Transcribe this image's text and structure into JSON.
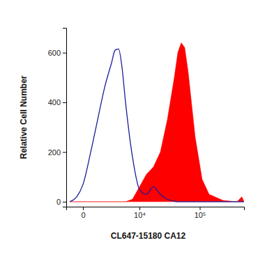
{
  "chart_data": {
    "type": "line",
    "x_label": "CL647-15180 CA12",
    "y_label": "Relative Cell Number",
    "log": "x",
    "xlim": [
      -1250,
      500000
    ],
    "ylim": [
      -20,
      700
    ],
    "xticks": [
      0,
      {
        "value": 10000,
        "label": "10⁴"
      },
      {
        "value": 100000,
        "label": "10⁵"
      }
    ],
    "yticks": [
      0,
      200,
      400,
      600
    ],
    "x": [
      -920,
      -380,
      0,
      480,
      1040,
      1770,
      2710,
      3270,
      3910,
      4630,
      5460,
      7440,
      10000,
      13280,
      17520,
      22950,
      29950,
      38920,
      44350,
      50460,
      57430,
      65370,
      84420,
      109000,
      140600,
      233500,
      387000,
      462000,
      498000
    ],
    "series": [
      {
        "type": "line",
        "color": "#1c1c9c",
        "values": [
          0,
          20,
          70,
          200,
          330,
          460,
          560,
          610,
          615,
          540,
          400,
          180,
          50,
          30,
          60,
          30,
          10,
          2,
          0,
          0,
          0,
          0,
          0,
          0,
          0,
          0,
          0,
          0,
          0
        ]
      },
      {
        "type": "area",
        "color": "#ff0000",
        "values": [
          0,
          0,
          0,
          0,
          0,
          0,
          0,
          0,
          0,
          0,
          0,
          10,
          60,
          110,
          140,
          200,
          330,
          500,
          600,
          640,
          620,
          520,
          260,
          90,
          30,
          5,
          0,
          20,
          0
        ]
      }
    ]
  }
}
